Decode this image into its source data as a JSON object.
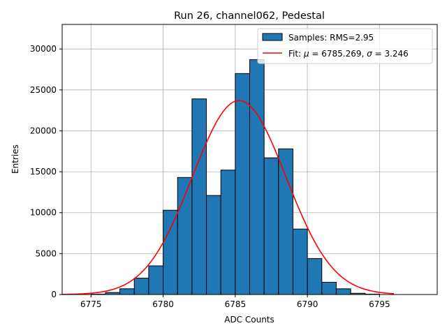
{
  "chart_data": {
    "type": "bar",
    "title": "Run 26, channel062, Pedestal",
    "xlabel": "ADC Counts",
    "ylabel": "Entries",
    "xlim": [
      6773,
      6799
    ],
    "ylim": [
      0,
      33000
    ],
    "xticks": [
      6775,
      6780,
      6785,
      6790,
      6795
    ],
    "yticks": [
      0,
      5000,
      10000,
      15000,
      20000,
      25000,
      30000
    ],
    "grid": true,
    "legend_position": "top-right",
    "colors": {
      "bars": "#1f77b4",
      "bar_edge": "#000000",
      "fit": "#ff0000"
    },
    "histogram": {
      "name": "Samples: RMS=2.95",
      "bin_width": 1,
      "bin_starts": [
        6773,
        6774,
        6775,
        6776,
        6777,
        6778,
        6779,
        6780,
        6781,
        6782,
        6783,
        6784,
        6785,
        6786,
        6787,
        6788,
        6789,
        6790,
        6791,
        6792,
        6793,
        6794,
        6795
      ],
      "values": [
        0,
        0,
        50,
        250,
        700,
        2000,
        3500,
        10300,
        14300,
        23900,
        12100,
        15200,
        27000,
        28700,
        16700,
        17800,
        8000,
        4400,
        1500,
        700,
        150,
        50,
        0
      ]
    },
    "fit": {
      "name": "Fit: μ = 6785.269, σ = 3.246",
      "label_prefix": "Fit: ",
      "mu_symbol": "μ",
      "mu_text": " = 6785.269, ",
      "sigma_symbol": "σ",
      "sigma_text": " = 3.246",
      "mu": 6785.269,
      "sigma": 3.246,
      "amplitude": 23700,
      "x_range": [
        6773,
        6796
      ]
    }
  }
}
